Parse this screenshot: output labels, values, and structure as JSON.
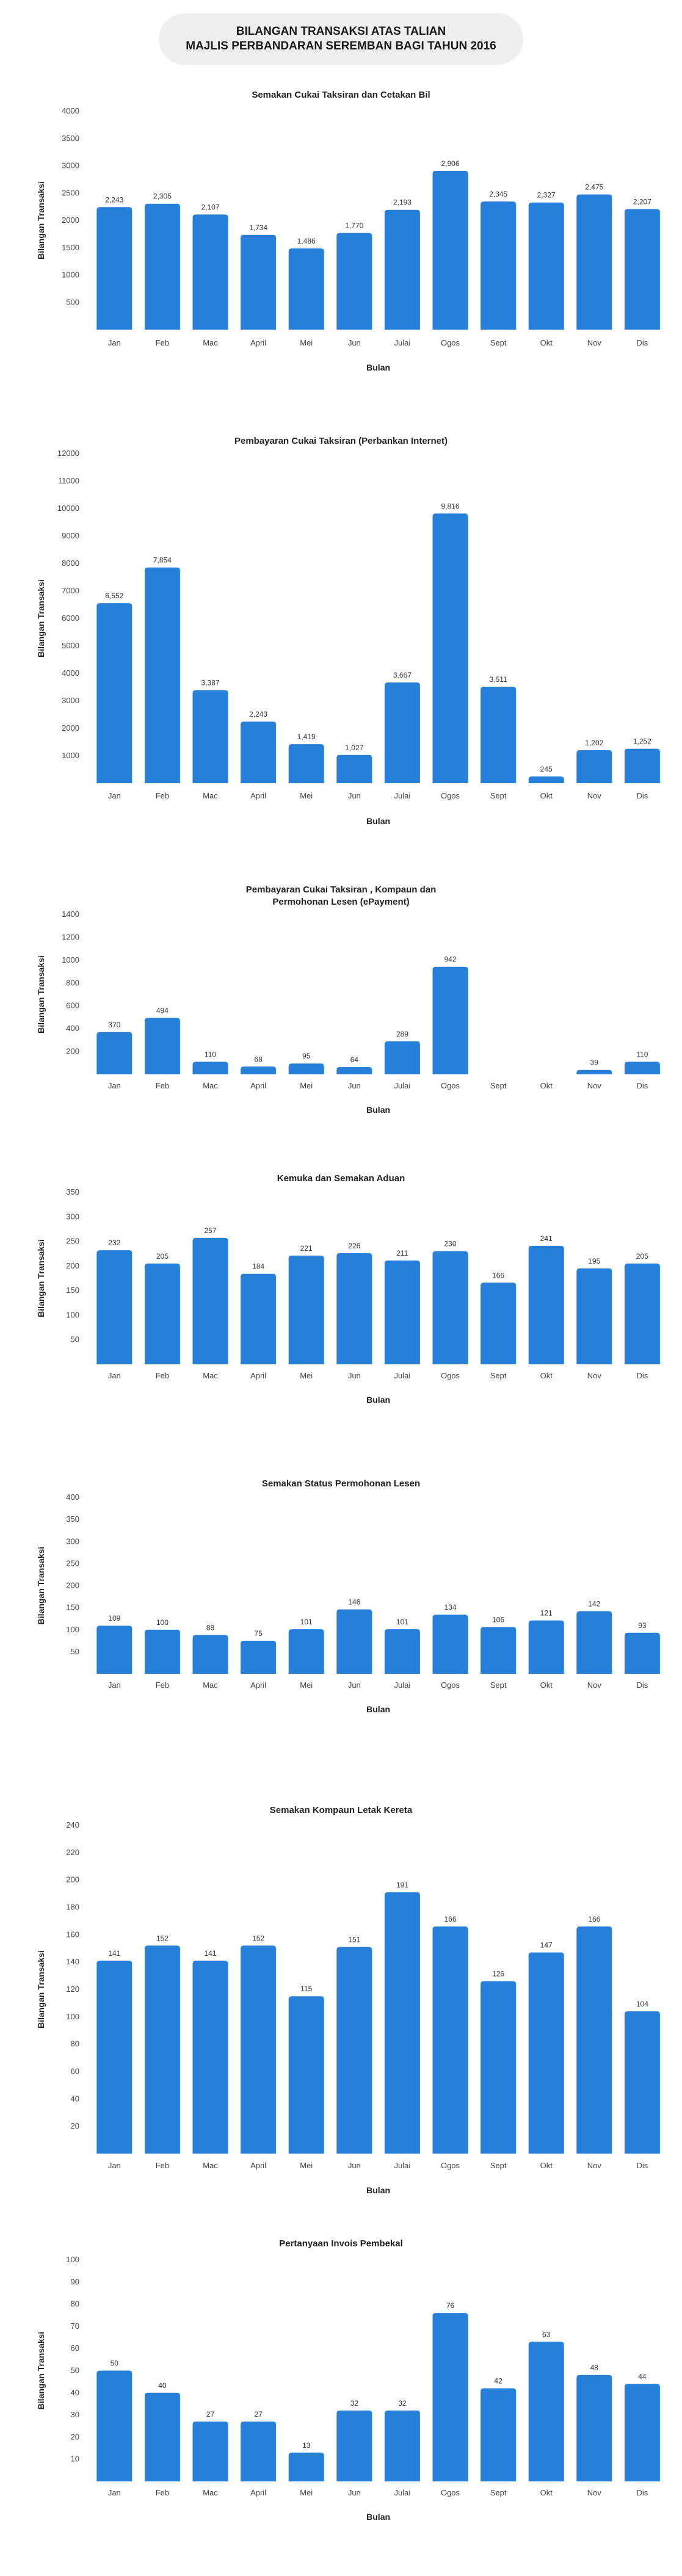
{
  "header": {
    "line1": "BILANGAN TRANSAKSI ATAS TALIAN",
    "line2": "MAJLIS PERBANDARAN SEREMBAN BAGI TAHUN 2016"
  },
  "colors": {
    "bar": "#2680d9",
    "header_bg": "#efefef"
  },
  "chart_data": [
    {
      "type": "bar",
      "title": [
        "Semakan Cukai Taksiran dan Cetakan Bil"
      ],
      "xlabel": "Bulan",
      "ylabel": "Bilangan Transaksi",
      "categories": [
        "Jan",
        "Feb",
        "Mac",
        "April",
        "Mei",
        "Jun",
        "Julai",
        "Ogos",
        "Sept",
        "Okt",
        "Nov",
        "Dis"
      ],
      "values": [
        2243,
        2305,
        2107,
        1734,
        1486,
        1770,
        2193,
        2906,
        2345,
        2327,
        2475,
        2207
      ],
      "data_labels": [
        "2,243",
        "2,305",
        "2,107",
        "1,734",
        "1,486",
        "1,770",
        "2,193",
        "2,906",
        "2,345",
        "2,327",
        "2,475",
        "2,207"
      ],
      "ylim": [
        0,
        4000
      ],
      "yticks": [
        500,
        1000,
        1500,
        2000,
        2500,
        3000,
        3500,
        4000
      ]
    },
    {
      "type": "bar",
      "title": [
        "Pembayaran Cukai Taksiran (Perbankan Internet)"
      ],
      "xlabel": "Bulan",
      "ylabel": "Bilangan Transaksi",
      "categories": [
        "Jan",
        "Feb",
        "Mac",
        "April",
        "Mei",
        "Jun",
        "Julai",
        "Ogos",
        "Sept",
        "Okt",
        "Nov",
        "Dis"
      ],
      "values": [
        6552,
        7854,
        3387,
        2243,
        1419,
        1027,
        3667,
        9816,
        3511,
        245,
        1202,
        1252
      ],
      "data_labels": [
        "6,552",
        "7,854",
        "3,387",
        "2,243",
        "1,419",
        "1,027",
        "3,667",
        "9,816",
        "3,511",
        "245",
        "1,202",
        "1,252"
      ],
      "ylim": [
        0,
        12000
      ],
      "yticks": [
        1000,
        2000,
        3000,
        4000,
        5000,
        6000,
        7000,
        8000,
        9000,
        10000,
        11000,
        12000
      ]
    },
    {
      "type": "bar",
      "title": [
        "Pembayaran Cukai Taksiran , Kompaun dan",
        "Permohonan Lesen (ePayment)"
      ],
      "xlabel": "Bulan",
      "ylabel": "Bilangan Transaksi",
      "categories": [
        "Jan",
        "Feb",
        "Mac",
        "April",
        "Mei",
        "Jun",
        "Julai",
        "Ogos",
        "Sept",
        "Okt",
        "Nov",
        "Dis"
      ],
      "values": [
        370,
        494,
        110,
        68,
        95,
        64,
        289,
        942,
        0,
        0,
        39,
        110
      ],
      "data_labels": [
        "370",
        "494",
        "110",
        "68",
        "95",
        "64",
        "289",
        "942",
        "",
        "",
        "39",
        "110"
      ],
      "ylim": [
        0,
        1400
      ],
      "yticks": [
        200,
        400,
        600,
        800,
        1000,
        1200,
        1400
      ]
    },
    {
      "type": "bar",
      "title": [
        "Kemuka dan Semakan Aduan"
      ],
      "xlabel": "Bulan",
      "ylabel": "Bilangan Transaksi",
      "categories": [
        "Jan",
        "Feb",
        "Mac",
        "April",
        "Mei",
        "Jun",
        "Julai",
        "Ogos",
        "Sept",
        "Okt",
        "Nov",
        "Dis"
      ],
      "values": [
        232,
        205,
        257,
        184,
        221,
        226,
        211,
        230,
        166,
        241,
        195,
        205
      ],
      "data_labels": [
        "232",
        "205",
        "257",
        "184",
        "221",
        "226",
        "211",
        "230",
        "166",
        "241",
        "195",
        "205"
      ],
      "ylim": [
        0,
        350
      ],
      "yticks": [
        50,
        100,
        150,
        200,
        250,
        300,
        350
      ]
    },
    {
      "type": "bar",
      "title": [
        "Semakan Status Permohonan Lesen"
      ],
      "xlabel": "Bulan",
      "ylabel": "Bilangan Transaksi",
      "categories": [
        "Jan",
        "Feb",
        "Mac",
        "April",
        "Mei",
        "Jun",
        "Julai",
        "Ogos",
        "Sept",
        "Okt",
        "Nov",
        "Dis"
      ],
      "values": [
        109,
        100,
        88,
        75,
        101,
        146,
        101,
        134,
        106,
        121,
        142,
        93
      ],
      "data_labels": [
        "109",
        "100",
        "88",
        "75",
        "101",
        "146",
        "101",
        "134",
        "106",
        "121",
        "142",
        "93"
      ],
      "ylim": [
        0,
        400
      ],
      "yticks": [
        50,
        100,
        150,
        200,
        250,
        300,
        350,
        400
      ]
    },
    {
      "type": "bar",
      "title": [
        "Semakan Kompaun Letak Kereta"
      ],
      "xlabel": "Bulan",
      "ylabel": "Bilangan Transaksi",
      "categories": [
        "Jan",
        "Feb",
        "Mac",
        "April",
        "Mei",
        "Jun",
        "Julai",
        "Ogos",
        "Sept",
        "Okt",
        "Nov",
        "Dis"
      ],
      "values": [
        141,
        152,
        141,
        152,
        115,
        151,
        191,
        166,
        126,
        147,
        166,
        104
      ],
      "data_labels": [
        "141",
        "152",
        "141",
        "152",
        "115",
        "151",
        "191",
        "166",
        "126",
        "147",
        "166",
        "104"
      ],
      "ylim": [
        0,
        240
      ],
      "yticks": [
        20,
        40,
        60,
        80,
        100,
        120,
        140,
        160,
        180,
        200,
        220,
        240
      ]
    },
    {
      "type": "bar",
      "title": [
        "Pertanyaan Invois Pembekal"
      ],
      "xlabel": "Bulan",
      "ylabel": "Bilangan Transaksi",
      "categories": [
        "Jan",
        "Feb",
        "Mac",
        "April",
        "Mei",
        "Jun",
        "Julai",
        "Ogos",
        "Sept",
        "Okt",
        "Nov",
        "Dis"
      ],
      "values": [
        50,
        40,
        27,
        27,
        13,
        32,
        32,
        76,
        42,
        63,
        48,
        44
      ],
      "data_labels": [
        "50",
        "40",
        "27",
        "27",
        "13",
        "32",
        "32",
        "76",
        "42",
        "63",
        "48",
        "44"
      ],
      "ylim": [
        0,
        100
      ],
      "yticks": [
        10,
        20,
        30,
        40,
        50,
        60,
        70,
        80,
        90,
        100
      ]
    }
  ]
}
